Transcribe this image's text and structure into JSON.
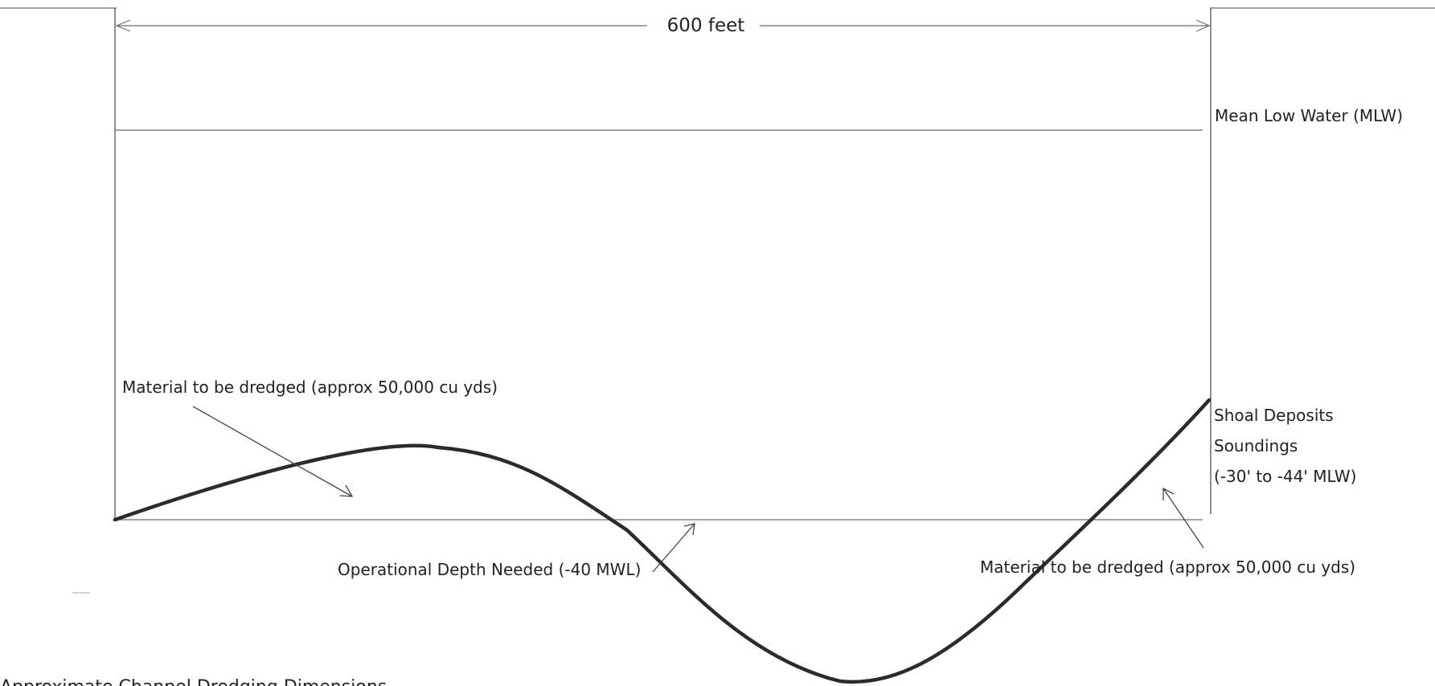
{
  "labels": {
    "width": "600 feet",
    "mlw": "Mean Low Water (MLW)",
    "material_left": "Material to be dredged (approx 50,000 cu yds)",
    "shoal_line1": "Shoal Deposits",
    "shoal_line2": "Soundings",
    "shoal_line3": "(-30' to -44' MLW)",
    "operational_depth": "Operational Depth Needed (-40 MWL)",
    "material_right": "Material to be dredged (approx 50,000 cu yds)",
    "caption": "Approximate Channel Dredging Dimensions"
  },
  "colors": {
    "profile": "#2b2b2b",
    "lines": "#6e6e6e",
    "text": "#222222"
  }
}
